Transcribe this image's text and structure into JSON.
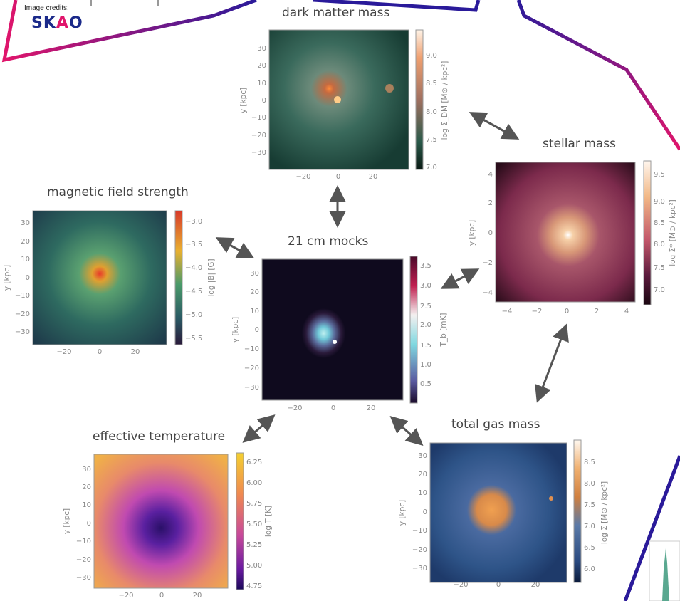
{
  "credits": {
    "label": "Image credits:",
    "logo": "SKAO"
  },
  "colors": {
    "frame_pink": "#e0156b",
    "frame_blue": "#2a1a9a",
    "arrow": "#555555"
  },
  "panels": [
    {
      "id": "dm",
      "title": "dark matter mass",
      "ylabel": "y [kpc]",
      "xticks": [
        "−20",
        "0",
        "20"
      ],
      "yticks": [
        "30",
        "20",
        "10",
        "0",
        "−10",
        "−20",
        "−30"
      ],
      "cbar_label": "log Σ_DM [M⊙ / kpc²]",
      "cbar_ticks": [
        "9.0",
        "8.5",
        "8.0",
        "7.5",
        "7.0"
      ]
    },
    {
      "id": "stellar",
      "title": "stellar mass",
      "ylabel": "y [kpc]",
      "xticks": [
        "−4",
        "−2",
        "0",
        "2",
        "4"
      ],
      "yticks": [
        "4",
        "2",
        "0",
        "−2",
        "−4"
      ],
      "cbar_label": "log Σ* [M⊙ / kpc²]",
      "cbar_ticks": [
        "9.5",
        "9.0",
        "8.5",
        "8.0",
        "7.5",
        "7.0"
      ]
    },
    {
      "id": "mag",
      "title": "magnetic field strength",
      "ylabel": "y [kpc]",
      "xticks": [
        "−20",
        "0",
        "20"
      ],
      "yticks": [
        "30",
        "20",
        "10",
        "0",
        "−10",
        "−20",
        "−30"
      ],
      "cbar_label": "log |B| [G]",
      "cbar_ticks": [
        "−3.0",
        "−3.5",
        "−4.0",
        "−4.5",
        "−5.0",
        "−5.5"
      ]
    },
    {
      "id": "h21",
      "title": "21 cm mocks",
      "ylabel": "y [kpc]",
      "xticks": [
        "−20",
        "0",
        "20"
      ],
      "yticks": [
        "30",
        "20",
        "10",
        "0",
        "−10",
        "−20",
        "−30"
      ],
      "cbar_label": "T_b [mK]",
      "cbar_ticks": [
        "3.5",
        "3.0",
        "2.5",
        "2.0",
        "1.5",
        "1.0",
        "0.5"
      ]
    },
    {
      "id": "temp",
      "title": "effective temperature",
      "ylabel": "y [kpc]",
      "xticks": [
        "−20",
        "0",
        "20"
      ],
      "yticks": [
        "30",
        "20",
        "10",
        "0",
        "−10",
        "−20",
        "−30"
      ],
      "cbar_label": "log T [K]",
      "cbar_ticks": [
        "6.25",
        "6.00",
        "5.75",
        "5.50",
        "5.25",
        "5.00",
        "4.75"
      ]
    },
    {
      "id": "gas",
      "title": "total gas mass",
      "ylabel": "y [kpc]",
      "xticks": [
        "−20",
        "0",
        "20"
      ],
      "yticks": [
        "30",
        "20",
        "10",
        "0",
        "−10",
        "−20",
        "−30"
      ],
      "cbar_label": "log Σ [M⊙ / kpc²]",
      "cbar_ticks": [
        "8.5",
        "8.0",
        "7.5",
        "7.0",
        "6.5",
        "6.0"
      ]
    }
  ]
}
